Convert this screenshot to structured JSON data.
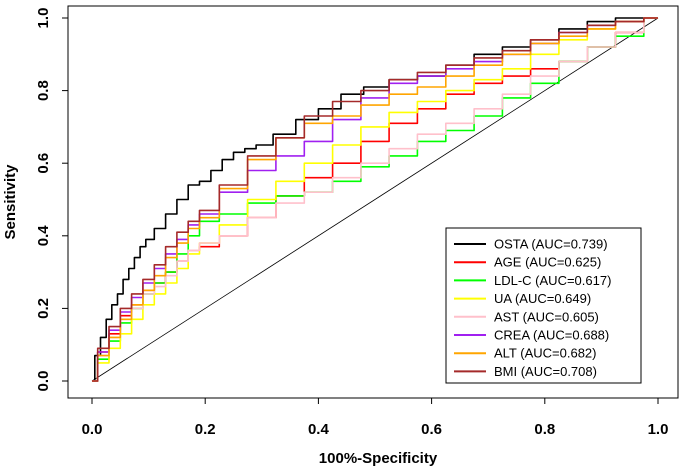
{
  "chart_data": {
    "type": "line",
    "title": "",
    "xlabel": "100%-Specificity",
    "ylabel": "Sensitivity",
    "xlim": [
      0,
      1
    ],
    "ylim": [
      0,
      1
    ],
    "xticks": [
      "0.0",
      "0.2",
      "0.4",
      "0.6",
      "0.8",
      "1.0"
    ],
    "yticks": [
      "0.0",
      "0.2",
      "0.4",
      "0.6",
      "0.8",
      "1.0"
    ],
    "legend_position": "bottom-right",
    "reference_line": {
      "from": [
        0,
        0
      ],
      "to": [
        1,
        1
      ],
      "color": "#000000"
    },
    "series": [
      {
        "name": "OSTA (AUC=0.739)",
        "color": "#000000",
        "x": [
          0,
          0.01,
          0.02,
          0.03,
          0.04,
          0.05,
          0.06,
          0.07,
          0.08,
          0.09,
          0.1,
          0.12,
          0.14,
          0.16,
          0.18,
          0.2,
          0.22,
          0.24,
          0.26,
          0.28,
          0.3,
          0.34,
          0.38,
          0.42,
          0.46,
          0.5,
          0.55,
          0.6,
          0.65,
          0.7,
          0.75,
          0.8,
          0.85,
          0.9,
          0.95,
          1.0
        ],
        "y": [
          0,
          0.07,
          0.12,
          0.17,
          0.21,
          0.24,
          0.28,
          0.31,
          0.34,
          0.37,
          0.39,
          0.42,
          0.46,
          0.5,
          0.54,
          0.55,
          0.58,
          0.61,
          0.63,
          0.64,
          0.65,
          0.68,
          0.72,
          0.75,
          0.79,
          0.81,
          0.83,
          0.84,
          0.87,
          0.9,
          0.92,
          0.94,
          0.97,
          0.99,
          1.0,
          1.0
        ]
      },
      {
        "name": "AGE (AUC=0.625)",
        "color": "#ff0000",
        "x": [
          0,
          0.02,
          0.04,
          0.06,
          0.08,
          0.1,
          0.12,
          0.14,
          0.16,
          0.18,
          0.2,
          0.25,
          0.3,
          0.35,
          0.4,
          0.45,
          0.5,
          0.55,
          0.6,
          0.65,
          0.7,
          0.75,
          0.8,
          0.85,
          0.9,
          0.95,
          1.0
        ],
        "y": [
          0,
          0.08,
          0.13,
          0.18,
          0.21,
          0.25,
          0.27,
          0.3,
          0.33,
          0.36,
          0.37,
          0.4,
          0.45,
          0.51,
          0.56,
          0.6,
          0.66,
          0.71,
          0.75,
          0.79,
          0.82,
          0.84,
          0.86,
          0.88,
          0.92,
          0.96,
          1.0
        ]
      },
      {
        "name": "LDL-C (AUC=0.617)",
        "color": "#00ff00",
        "x": [
          0,
          0.02,
          0.04,
          0.06,
          0.08,
          0.1,
          0.12,
          0.14,
          0.16,
          0.18,
          0.2,
          0.25,
          0.3,
          0.35,
          0.4,
          0.45,
          0.5,
          0.55,
          0.6,
          0.65,
          0.7,
          0.75,
          0.8,
          0.85,
          0.9,
          0.95,
          1.0
        ],
        "y": [
          0,
          0.06,
          0.11,
          0.16,
          0.2,
          0.24,
          0.27,
          0.3,
          0.35,
          0.4,
          0.44,
          0.46,
          0.49,
          0.51,
          0.52,
          0.55,
          0.59,
          0.62,
          0.66,
          0.69,
          0.73,
          0.78,
          0.82,
          0.88,
          0.92,
          0.95,
          1.0
        ]
      },
      {
        "name": "UA (AUC=0.649)",
        "color": "#ffff00",
        "x": [
          0,
          0.02,
          0.04,
          0.06,
          0.08,
          0.1,
          0.12,
          0.14,
          0.16,
          0.18,
          0.2,
          0.25,
          0.3,
          0.35,
          0.4,
          0.45,
          0.5,
          0.55,
          0.6,
          0.65,
          0.7,
          0.75,
          0.8,
          0.85,
          0.9,
          0.95,
          1.0
        ],
        "y": [
          0,
          0.05,
          0.09,
          0.13,
          0.17,
          0.21,
          0.24,
          0.27,
          0.31,
          0.35,
          0.38,
          0.43,
          0.5,
          0.55,
          0.6,
          0.65,
          0.7,
          0.74,
          0.77,
          0.8,
          0.83,
          0.86,
          0.9,
          0.94,
          0.97,
          0.99,
          1.0
        ]
      },
      {
        "name": "AST (AUC=0.605)",
        "color": "#ffc0cb",
        "x": [
          0,
          0.02,
          0.04,
          0.06,
          0.08,
          0.1,
          0.12,
          0.14,
          0.16,
          0.18,
          0.2,
          0.25,
          0.3,
          0.35,
          0.4,
          0.45,
          0.5,
          0.55,
          0.6,
          0.65,
          0.7,
          0.75,
          0.8,
          0.85,
          0.9,
          0.95,
          1.0
        ],
        "y": [
          0,
          0.07,
          0.12,
          0.17,
          0.2,
          0.24,
          0.26,
          0.29,
          0.33,
          0.36,
          0.38,
          0.4,
          0.45,
          0.49,
          0.52,
          0.56,
          0.6,
          0.64,
          0.68,
          0.71,
          0.75,
          0.79,
          0.84,
          0.88,
          0.92,
          0.96,
          1.0
        ]
      },
      {
        "name": "CREA (AUC=0.688)",
        "color": "#a020f0",
        "x": [
          0,
          0.02,
          0.04,
          0.06,
          0.08,
          0.1,
          0.12,
          0.14,
          0.16,
          0.18,
          0.2,
          0.25,
          0.3,
          0.35,
          0.4,
          0.45,
          0.5,
          0.55,
          0.6,
          0.65,
          0.7,
          0.75,
          0.8,
          0.85,
          0.9,
          0.95,
          1.0
        ],
        "y": [
          0,
          0.08,
          0.14,
          0.19,
          0.23,
          0.27,
          0.31,
          0.35,
          0.39,
          0.43,
          0.46,
          0.52,
          0.58,
          0.62,
          0.66,
          0.72,
          0.78,
          0.82,
          0.84,
          0.86,
          0.88,
          0.9,
          0.93,
          0.96,
          0.98,
          0.99,
          1.0
        ]
      },
      {
        "name": "ALT (AUC=0.682)",
        "color": "#ffa500",
        "x": [
          0,
          0.02,
          0.04,
          0.06,
          0.08,
          0.1,
          0.12,
          0.14,
          0.16,
          0.18,
          0.2,
          0.25,
          0.3,
          0.35,
          0.4,
          0.45,
          0.5,
          0.55,
          0.6,
          0.65,
          0.7,
          0.75,
          0.8,
          0.85,
          0.9,
          0.95,
          1.0
        ],
        "y": [
          0,
          0.07,
          0.12,
          0.17,
          0.21,
          0.25,
          0.29,
          0.34,
          0.38,
          0.42,
          0.45,
          0.53,
          0.61,
          0.67,
          0.71,
          0.73,
          0.76,
          0.79,
          0.81,
          0.84,
          0.87,
          0.9,
          0.93,
          0.95,
          0.97,
          0.99,
          1.0
        ]
      },
      {
        "name": "BMI (AUC=0.708)",
        "color": "#a52a2a",
        "x": [
          0,
          0.02,
          0.04,
          0.06,
          0.08,
          0.1,
          0.12,
          0.14,
          0.16,
          0.18,
          0.2,
          0.25,
          0.3,
          0.35,
          0.4,
          0.45,
          0.5,
          0.55,
          0.6,
          0.65,
          0.7,
          0.75,
          0.8,
          0.85,
          0.9,
          0.95,
          1.0
        ],
        "y": [
          0,
          0.09,
          0.15,
          0.2,
          0.24,
          0.28,
          0.32,
          0.37,
          0.41,
          0.44,
          0.47,
          0.54,
          0.62,
          0.67,
          0.73,
          0.77,
          0.8,
          0.83,
          0.85,
          0.87,
          0.89,
          0.91,
          0.94,
          0.96,
          0.98,
          0.99,
          1.0
        ]
      }
    ]
  }
}
